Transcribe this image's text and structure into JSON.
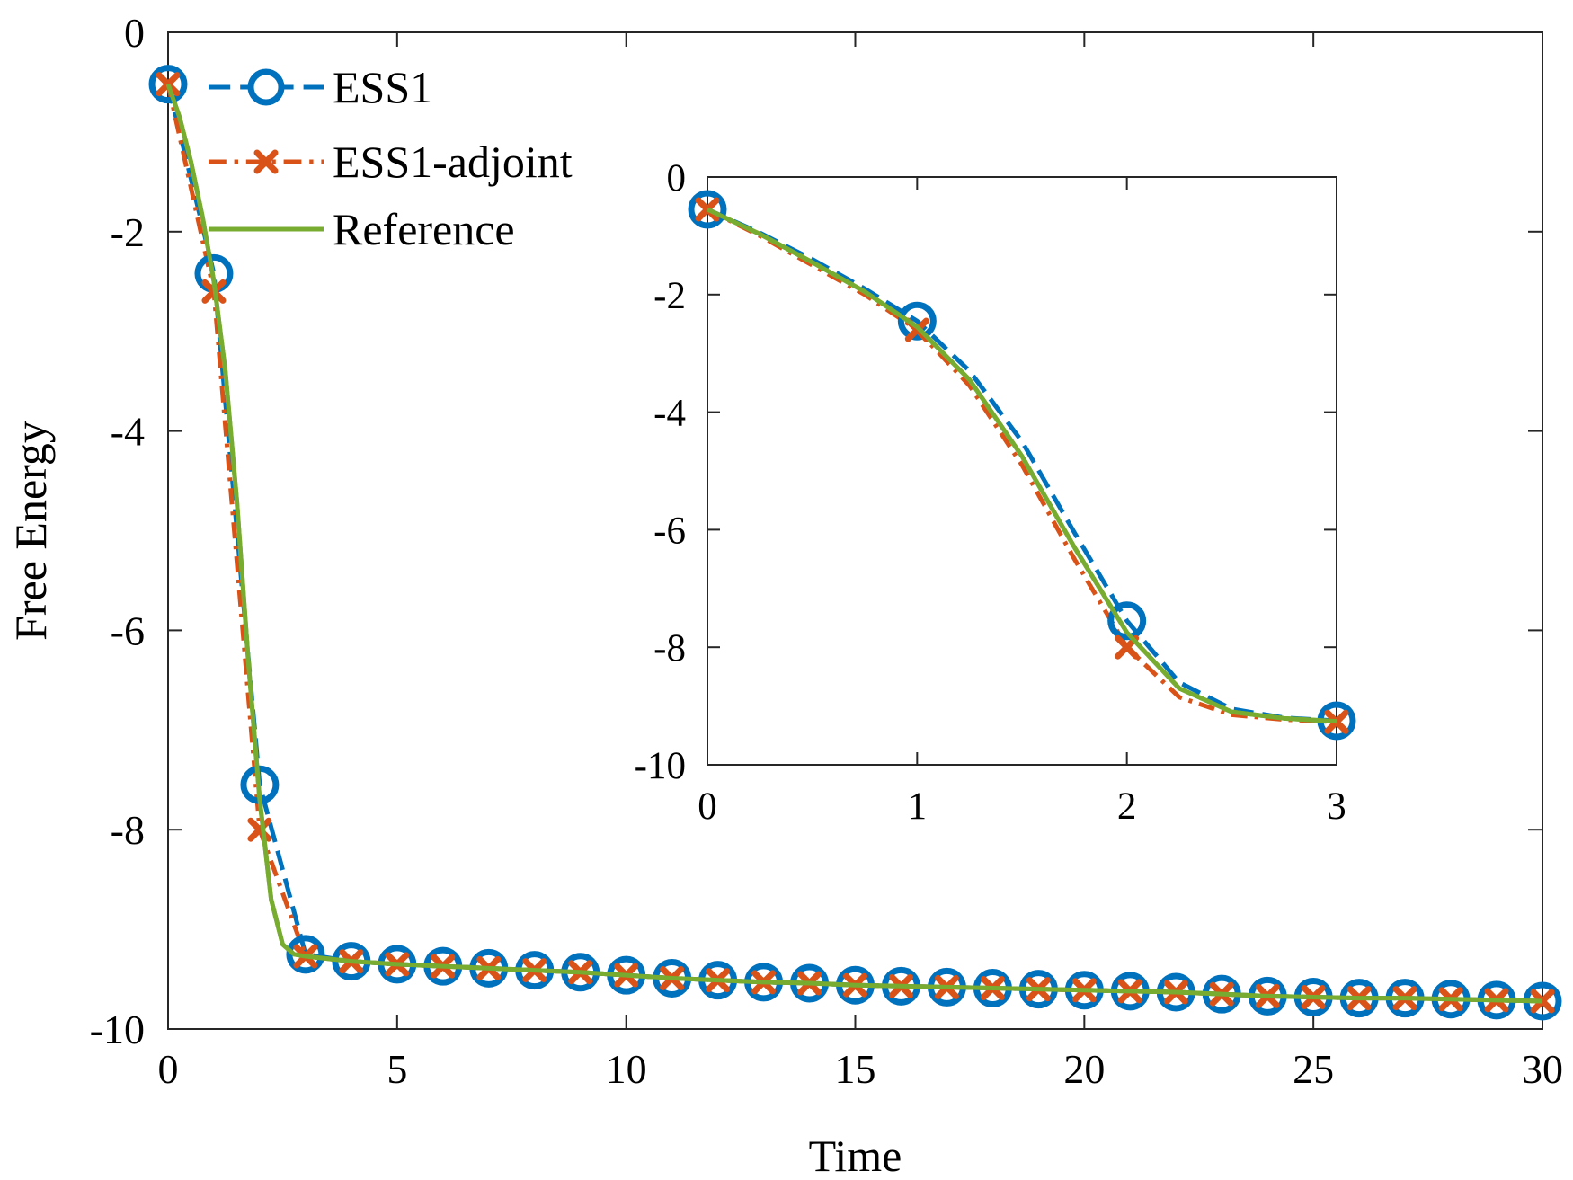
{
  "chart_data": [
    {
      "type": "line",
      "xlabel": "Time",
      "ylabel": "Free Energy",
      "xlim": [
        0,
        30
      ],
      "ylim": [
        -10,
        0
      ],
      "xticks": [
        0,
        5,
        10,
        15,
        20,
        25,
        30
      ],
      "yticks": [
        0,
        -2,
        -4,
        -6,
        -8,
        -10
      ],
      "legend_position": "top-left",
      "series": [
        {
          "name": "ESS1",
          "color": "#0072BD",
          "line_style": "dashed",
          "marker": "circle",
          "x": [
            0,
            1,
            2,
            3,
            4,
            5,
            6,
            7,
            8,
            9,
            10,
            11,
            12,
            13,
            14,
            15,
            16,
            17,
            18,
            19,
            20,
            21,
            22,
            23,
            24,
            25,
            26,
            27,
            28,
            29,
            30
          ],
          "y": [
            -0.52,
            -2.42,
            -7.55,
            -9.25,
            -9.32,
            -9.35,
            -9.37,
            -9.39,
            -9.41,
            -9.43,
            -9.46,
            -9.49,
            -9.51,
            -9.53,
            -9.54,
            -9.56,
            -9.57,
            -9.58,
            -9.59,
            -9.6,
            -9.61,
            -9.62,
            -9.63,
            -9.65,
            -9.67,
            -9.68,
            -9.69,
            -9.69,
            -9.7,
            -9.71,
            -9.72
          ]
        },
        {
          "name": "ESS1-adjoint",
          "color": "#D95319",
          "line_style": "dash-dot",
          "marker": "x",
          "x": [
            0,
            1,
            2,
            3,
            4,
            5,
            6,
            7,
            8,
            9,
            10,
            11,
            12,
            13,
            14,
            15,
            16,
            17,
            18,
            19,
            20,
            21,
            22,
            23,
            24,
            25,
            26,
            27,
            28,
            29,
            30
          ],
          "y": [
            -0.52,
            -2.6,
            -8.0,
            -9.27,
            -9.32,
            -9.35,
            -9.37,
            -9.39,
            -9.41,
            -9.43,
            -9.46,
            -9.49,
            -9.51,
            -9.53,
            -9.54,
            -9.56,
            -9.57,
            -9.58,
            -9.59,
            -9.6,
            -9.61,
            -9.62,
            -9.63,
            -9.65,
            -9.67,
            -9.68,
            -9.69,
            -9.69,
            -9.7,
            -9.71,
            -9.72
          ]
        },
        {
          "name": "Reference",
          "color": "#77AC30",
          "line_style": "solid",
          "marker": "none",
          "x": [
            0,
            0.25,
            0.5,
            0.75,
            1,
            1.25,
            1.5,
            1.75,
            2,
            2.25,
            2.5,
            2.75,
            3,
            4,
            5,
            6,
            7,
            8,
            9,
            10,
            11,
            12,
            13,
            14,
            15,
            16,
            17,
            18,
            19,
            20,
            21,
            22,
            23,
            24,
            25,
            26,
            27,
            28,
            29,
            30
          ],
          "y": [
            -0.52,
            -0.85,
            -1.3,
            -1.85,
            -2.5,
            -3.4,
            -4.7,
            -6.3,
            -7.7,
            -8.7,
            -9.15,
            -9.25,
            -9.27,
            -9.32,
            -9.35,
            -9.37,
            -9.39,
            -9.41,
            -9.43,
            -9.46,
            -9.49,
            -9.51,
            -9.53,
            -9.54,
            -9.56,
            -9.57,
            -9.58,
            -9.59,
            -9.6,
            -9.61,
            -9.62,
            -9.63,
            -9.65,
            -9.67,
            -9.68,
            -9.69,
            -9.69,
            -9.7,
            -9.71,
            -9.72
          ]
        }
      ]
    },
    {
      "type": "line",
      "role": "inset",
      "xlabel": "",
      "ylabel": "",
      "xlim": [
        0,
        3
      ],
      "ylim": [
        -10,
        0
      ],
      "xticks": [
        0,
        1,
        2,
        3
      ],
      "yticks": [
        0,
        -2,
        -4,
        -6,
        -8,
        -10
      ],
      "series": [
        {
          "name": "ESS1",
          "color": "#0072BD",
          "line_style": "dashed",
          "marker": "circle",
          "x": [
            0,
            0.25,
            0.5,
            0.75,
            1,
            1.25,
            1.5,
            1.75,
            2,
            2.25,
            2.5,
            2.75,
            3
          ],
          "y": [
            -0.55,
            -0.95,
            -1.4,
            -1.9,
            -2.45,
            -3.3,
            -4.5,
            -6.05,
            -7.55,
            -8.6,
            -9.05,
            -9.2,
            -9.25
          ],
          "marker_x": [
            0,
            1,
            2,
            3
          ],
          "marker_y": [
            -0.55,
            -2.45,
            -7.55,
            -9.25
          ]
        },
        {
          "name": "ESS1-adjoint",
          "color": "#D95319",
          "line_style": "dash-dot",
          "marker": "x",
          "x": [
            0,
            0.25,
            0.5,
            0.75,
            1,
            1.25,
            1.5,
            1.75,
            2,
            2.25,
            2.5,
            2.75,
            3
          ],
          "y": [
            -0.55,
            -1.0,
            -1.5,
            -2.0,
            -2.6,
            -3.55,
            -4.9,
            -6.5,
            -8.0,
            -8.85,
            -9.15,
            -9.23,
            -9.27
          ],
          "marker_x": [
            0,
            1,
            2,
            3
          ],
          "marker_y": [
            -0.55,
            -2.6,
            -8.0,
            -9.27
          ]
        },
        {
          "name": "Reference",
          "color": "#77AC30",
          "line_style": "solid",
          "marker": "none",
          "x": [
            0,
            0.25,
            0.5,
            0.75,
            1,
            1.25,
            1.5,
            1.75,
            2,
            2.25,
            2.5,
            2.75,
            3
          ],
          "y": [
            -0.55,
            -0.97,
            -1.45,
            -1.95,
            -2.55,
            -3.45,
            -4.75,
            -6.3,
            -7.75,
            -8.7,
            -9.1,
            -9.21,
            -9.26
          ]
        }
      ]
    }
  ]
}
